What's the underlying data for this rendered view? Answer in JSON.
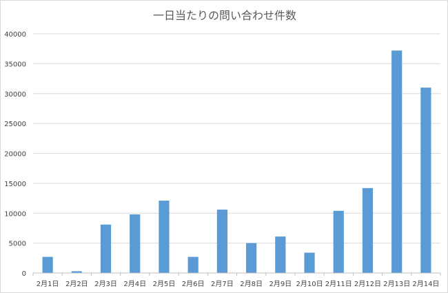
{
  "chart_data": {
    "type": "bar",
    "title": "一日当たりの問い合わせ件数",
    "xlabel": "",
    "ylabel": "",
    "categories": [
      "2月1日",
      "2月2日",
      "2月3日",
      "2月4日",
      "2月5日",
      "2月6日",
      "2月7日",
      "2月8日",
      "2月9日",
      "2月10日",
      "2月11日",
      "2月12日",
      "2月13日",
      "2月14日"
    ],
    "values": [
      2700,
      300,
      8100,
      9800,
      12100,
      2700,
      10600,
      5000,
      6100,
      3400,
      10400,
      14200,
      37200,
      31000
    ],
    "ylim": [
      0,
      40000
    ],
    "yticks": [
      0,
      5000,
      10000,
      15000,
      20000,
      25000,
      30000,
      35000,
      40000
    ],
    "ytick_labels": [
      "0",
      "5000",
      "10000",
      "15000",
      "20000",
      "25000",
      "30000",
      "35000",
      "40000"
    ],
    "grid": true,
    "legend": "none",
    "colors": {
      "bar": "#5b9bd5",
      "grid": "#d9d9d9",
      "text": "#404040"
    }
  }
}
